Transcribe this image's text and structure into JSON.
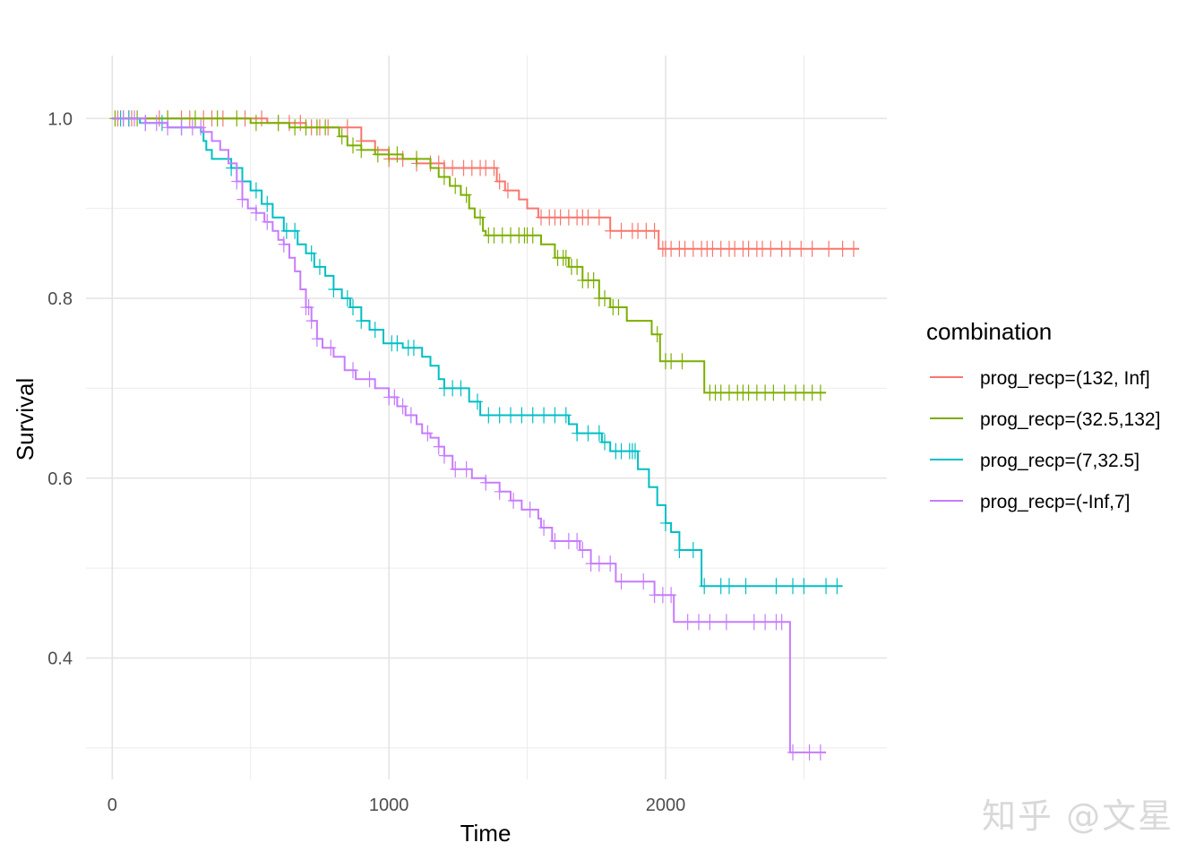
{
  "chart_data": {
    "type": "line",
    "subtype": "kaplan-meier step",
    "title": "",
    "xlabel": "Time",
    "ylabel": "Survival",
    "xlim": [
      -95,
      2800
    ],
    "ylim": [
      0.265,
      1.07
    ],
    "xticks": [
      0,
      1000,
      2000
    ],
    "yticks": [
      0.4,
      0.6,
      0.8,
      1.0
    ],
    "xtick_labels": [
      "0",
      "1000",
      "2000"
    ],
    "ytick_labels": [
      "0.4",
      "0.6",
      "0.8",
      "1.0"
    ],
    "grid": true,
    "legend_title": "combination",
    "legend_position": "right",
    "series": [
      {
        "name": "prog_recp=(132, Inf]",
        "color": "#F8766D",
        "steps": [
          [
            0,
            1.0
          ],
          [
            560,
            0.995
          ],
          [
            700,
            0.99
          ],
          [
            900,
            0.975
          ],
          [
            950,
            0.965
          ],
          [
            1000,
            0.955
          ],
          [
            1100,
            0.95
          ],
          [
            1200,
            0.945
          ],
          [
            1390,
            0.93
          ],
          [
            1420,
            0.92
          ],
          [
            1470,
            0.91
          ],
          [
            1500,
            0.9
          ],
          [
            1540,
            0.89
          ],
          [
            1800,
            0.875
          ],
          [
            1975,
            0.855
          ],
          [
            2700,
            0.855
          ]
        ],
        "censor": [
          20,
          60,
          70,
          170,
          200,
          250,
          280,
          330,
          360,
          400,
          480,
          540,
          600,
          640,
          680,
          720,
          750,
          780,
          850,
          900,
          1000,
          1050,
          1100,
          1150,
          1180,
          1200,
          1230,
          1270,
          1300,
          1330,
          1350,
          1380,
          1400,
          1430,
          1550,
          1580,
          1600,
          1620,
          1650,
          1680,
          1700,
          1720,
          1760,
          1800,
          1840,
          1880,
          1900,
          1930,
          1960,
          1990,
          2000,
          2020,
          2050,
          2070,
          2100,
          2130,
          2150,
          2170,
          2200,
          2230,
          2250,
          2280,
          2300,
          2330,
          2350,
          2380,
          2420,
          2450,
          2490,
          2530,
          2590,
          2640,
          2680
        ]
      },
      {
        "name": "prog_recp=(32.5,132]",
        "color": "#7CAE00",
        "steps": [
          [
            0,
            1.0
          ],
          [
            500,
            0.995
          ],
          [
            640,
            0.99
          ],
          [
            820,
            0.98
          ],
          [
            850,
            0.97
          ],
          [
            900,
            0.965
          ],
          [
            950,
            0.96
          ],
          [
            1050,
            0.955
          ],
          [
            1150,
            0.945
          ],
          [
            1180,
            0.935
          ],
          [
            1220,
            0.925
          ],
          [
            1260,
            0.915
          ],
          [
            1290,
            0.9
          ],
          [
            1310,
            0.89
          ],
          [
            1340,
            0.875
          ],
          [
            1350,
            0.87
          ],
          [
            1550,
            0.86
          ],
          [
            1600,
            0.845
          ],
          [
            1650,
            0.835
          ],
          [
            1700,
            0.82
          ],
          [
            1760,
            0.8
          ],
          [
            1800,
            0.79
          ],
          [
            1860,
            0.775
          ],
          [
            1950,
            0.76
          ],
          [
            1980,
            0.73
          ],
          [
            2140,
            0.695
          ],
          [
            2580,
            0.695
          ]
        ],
        "censor": [
          10,
          40,
          90,
          200,
          300,
          380,
          450,
          520,
          600,
          660,
          700,
          740,
          770,
          830,
          870,
          900,
          960,
          1000,
          1030,
          1100,
          1200,
          1240,
          1280,
          1330,
          1360,
          1380,
          1410,
          1440,
          1470,
          1490,
          1500,
          1520,
          1610,
          1630,
          1640,
          1660,
          1680,
          1700,
          1720,
          1740,
          1760,
          1780,
          1810,
          1830,
          1970,
          2000,
          2020,
          2060,
          2160,
          2180,
          2200,
          2230,
          2260,
          2280,
          2300,
          2330,
          2360,
          2390,
          2430,
          2470,
          2500,
          2530,
          2560
        ]
      },
      {
        "name": "prog_recp=(7,32.5]",
        "color": "#00BFC4",
        "steps": [
          [
            0,
            1.0
          ],
          [
            100,
            0.995
          ],
          [
            200,
            0.99
          ],
          [
            320,
            0.985
          ],
          [
            330,
            0.975
          ],
          [
            340,
            0.965
          ],
          [
            360,
            0.955
          ],
          [
            430,
            0.945
          ],
          [
            470,
            0.93
          ],
          [
            500,
            0.92
          ],
          [
            540,
            0.905
          ],
          [
            580,
            0.89
          ],
          [
            620,
            0.875
          ],
          [
            670,
            0.86
          ],
          [
            700,
            0.85
          ],
          [
            730,
            0.835
          ],
          [
            770,
            0.825
          ],
          [
            800,
            0.81
          ],
          [
            830,
            0.8
          ],
          [
            860,
            0.79
          ],
          [
            900,
            0.775
          ],
          [
            930,
            0.765
          ],
          [
            980,
            0.75
          ],
          [
            1050,
            0.745
          ],
          [
            1120,
            0.735
          ],
          [
            1150,
            0.725
          ],
          [
            1180,
            0.71
          ],
          [
            1200,
            0.7
          ],
          [
            1290,
            0.685
          ],
          [
            1330,
            0.67
          ],
          [
            1650,
            0.66
          ],
          [
            1680,
            0.65
          ],
          [
            1770,
            0.64
          ],
          [
            1800,
            0.63
          ],
          [
            1900,
            0.61
          ],
          [
            1940,
            0.59
          ],
          [
            1970,
            0.57
          ],
          [
            2000,
            0.55
          ],
          [
            2020,
            0.54
          ],
          [
            2050,
            0.52
          ],
          [
            2130,
            0.48
          ],
          [
            2640,
            0.48
          ]
        ],
        "censor": [
          30,
          60,
          120,
          180,
          250,
          430,
          470,
          520,
          560,
          630,
          660,
          720,
          750,
          800,
          850,
          870,
          900,
          950,
          1010,
          1030,
          1070,
          1090,
          1200,
          1230,
          1260,
          1320,
          1360,
          1400,
          1440,
          1480,
          1520,
          1560,
          1600,
          1640,
          1680,
          1720,
          1760,
          1780,
          1820,
          1840,
          1870,
          1880,
          1890,
          2000,
          2050,
          2100,
          2140,
          2200,
          2230,
          2290,
          2400,
          2460,
          2500,
          2580,
          2620
        ]
      },
      {
        "name": "prog_recp=(-Inf,7]",
        "color": "#C77CFF",
        "steps": [
          [
            0,
            1.0
          ],
          [
            120,
            0.995
          ],
          [
            200,
            0.99
          ],
          [
            330,
            0.985
          ],
          [
            360,
            0.975
          ],
          [
            390,
            0.965
          ],
          [
            420,
            0.95
          ],
          [
            450,
            0.93
          ],
          [
            470,
            0.91
          ],
          [
            490,
            0.9
          ],
          [
            520,
            0.895
          ],
          [
            550,
            0.885
          ],
          [
            580,
            0.875
          ],
          [
            600,
            0.865
          ],
          [
            620,
            0.86
          ],
          [
            640,
            0.845
          ],
          [
            660,
            0.83
          ],
          [
            680,
            0.81
          ],
          [
            700,
            0.79
          ],
          [
            720,
            0.775
          ],
          [
            740,
            0.755
          ],
          [
            760,
            0.745
          ],
          [
            800,
            0.735
          ],
          [
            840,
            0.72
          ],
          [
            880,
            0.71
          ],
          [
            950,
            0.7
          ],
          [
            1000,
            0.69
          ],
          [
            1030,
            0.68
          ],
          [
            1060,
            0.67
          ],
          [
            1100,
            0.66
          ],
          [
            1120,
            0.65
          ],
          [
            1150,
            0.645
          ],
          [
            1180,
            0.635
          ],
          [
            1200,
            0.625
          ],
          [
            1230,
            0.61
          ],
          [
            1260,
            0.61
          ],
          [
            1300,
            0.6
          ],
          [
            1350,
            0.595
          ],
          [
            1400,
            0.585
          ],
          [
            1440,
            0.575
          ],
          [
            1480,
            0.565
          ],
          [
            1540,
            0.555
          ],
          [
            1550,
            0.545
          ],
          [
            1590,
            0.53
          ],
          [
            1690,
            0.52
          ],
          [
            1730,
            0.505
          ],
          [
            1820,
            0.485
          ],
          [
            1960,
            0.47
          ],
          [
            2030,
            0.44
          ],
          [
            2450,
            0.295
          ],
          [
            2580,
            0.295
          ]
        ],
        "censor": [
          40,
          80,
          120,
          160,
          200,
          250,
          290,
          320,
          450,
          470,
          520,
          560,
          620,
          700,
          710,
          720,
          740,
          790,
          870,
          930,
          1000,
          1020,
          1050,
          1080,
          1140,
          1180,
          1200,
          1240,
          1280,
          1350,
          1400,
          1450,
          1510,
          1560,
          1600,
          1650,
          1680,
          1700,
          1730,
          1760,
          1800,
          1840,
          1920,
          1960,
          1990,
          2020,
          2080,
          2120,
          2160,
          2220,
          2320,
          2360,
          2400,
          2420,
          2460,
          2520,
          2560
        ]
      }
    ]
  },
  "watermark": "知乎 @文星"
}
